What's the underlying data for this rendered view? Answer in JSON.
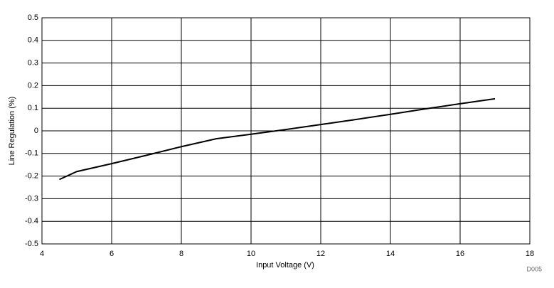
{
  "chart_data": {
    "type": "line",
    "x_label": "Input Voltage (V)",
    "y_label": "Line Regulation (%)",
    "note": "D005",
    "x": [
      4.5,
      5,
      6,
      7,
      8,
      9,
      10,
      11,
      12,
      13,
      14,
      15,
      16,
      17
    ],
    "series": [
      {
        "color": "#000000",
        "values": [
          -0.215,
          -0.18,
          -0.145,
          -0.108,
          -0.07,
          -0.035,
          -0.015,
          0.006,
          0.028,
          0.05,
          0.073,
          0.097,
          0.12,
          0.142
        ]
      }
    ],
    "xlim": [
      4,
      18
    ],
    "xticks": [
      4,
      6,
      8,
      10,
      12,
      14,
      16,
      18
    ],
    "ylim": [
      -0.5,
      0.5
    ],
    "yticks": [
      -0.5,
      -0.4,
      -0.3,
      -0.2,
      -0.1,
      0,
      0.1,
      0.2,
      0.3,
      0.4,
      0.5
    ],
    "grid": true
  }
}
